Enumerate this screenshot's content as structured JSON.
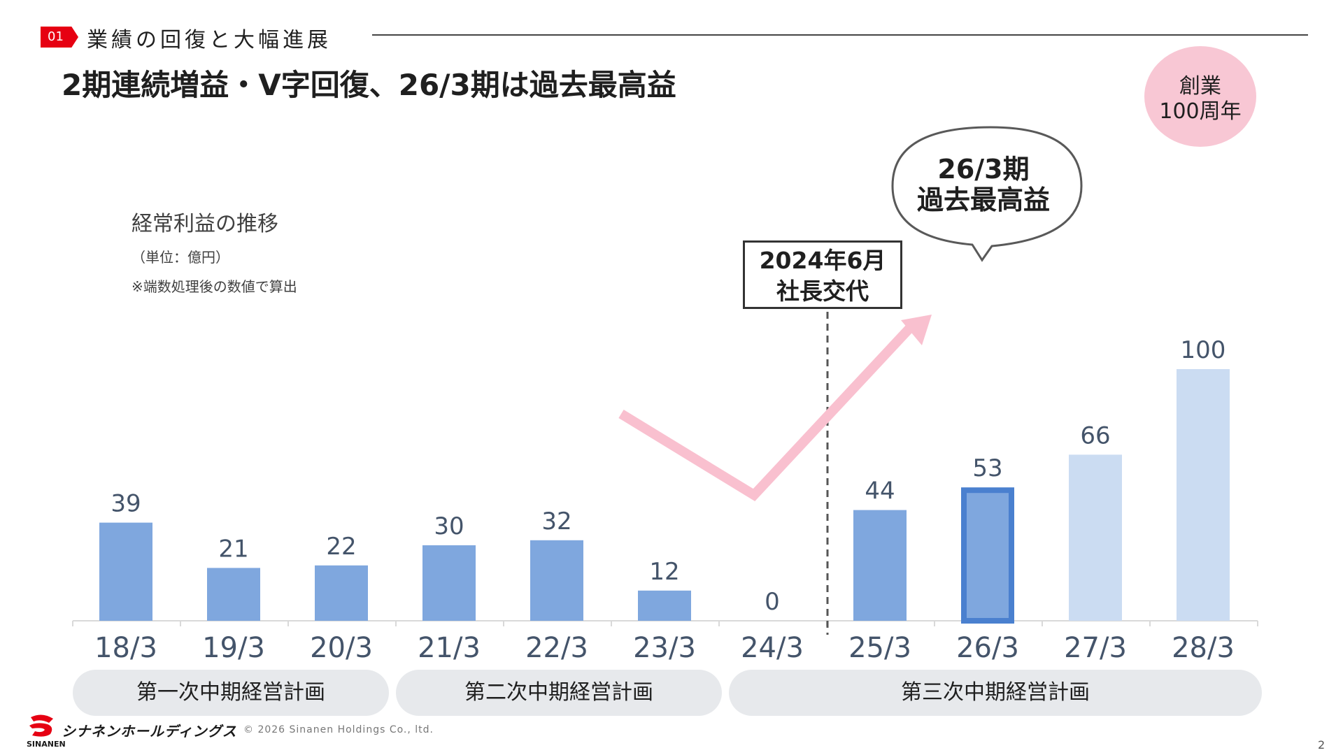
{
  "header": {
    "section_number": "01",
    "section_title": "業績の回復と大幅進展",
    "headline": "2期連続増益・V字回復、26/3期は過去最高益"
  },
  "chart_notes": {
    "title": "経常利益の推移",
    "unit": "（単位：億円）",
    "calculation_note": "※端数処理後の数値で算出"
  },
  "chart_data": {
    "type": "bar",
    "title": "経常利益の推移",
    "unit": "億円",
    "categories": [
      "18/3",
      "19/3",
      "20/3",
      "21/3",
      "22/3",
      "23/3",
      "24/3",
      "25/3",
      "26/3",
      "27/3",
      "28/3"
    ],
    "values": [
      39,
      21,
      22,
      30,
      32,
      12,
      0,
      44,
      53,
      66,
      100
    ],
    "highlight_category": "26/3",
    "forecast_categories": [
      "27/3",
      "28/3"
    ],
    "colors": {
      "actual": "#7fa7de",
      "highlight_border": "#4a80cf",
      "forecast": "#cbdcf2",
      "label": "#44546a",
      "arrow": "#f9c0cf"
    }
  },
  "plans": [
    {
      "label": "第一次中期経営計画"
    },
    {
      "label": "第二次中期経営計画"
    },
    {
      "label": "第三次中期経営計画"
    }
  ],
  "annotations": {
    "ceo_change_line1": "2024年6月",
    "ceo_change_line2": "社長交代",
    "record_line1": "26/3期",
    "record_line2": "過去最高益",
    "anniversary_line1": "創業",
    "anniversary_line2": "100周年"
  },
  "footer": {
    "company_name": "シナネンホールディングス",
    "company_sub": "SINANEN",
    "copyright": "© 2026 Sinanen Holdings Co., ltd.",
    "page_number": "2"
  },
  "brand": {
    "accent": "#e60012"
  }
}
